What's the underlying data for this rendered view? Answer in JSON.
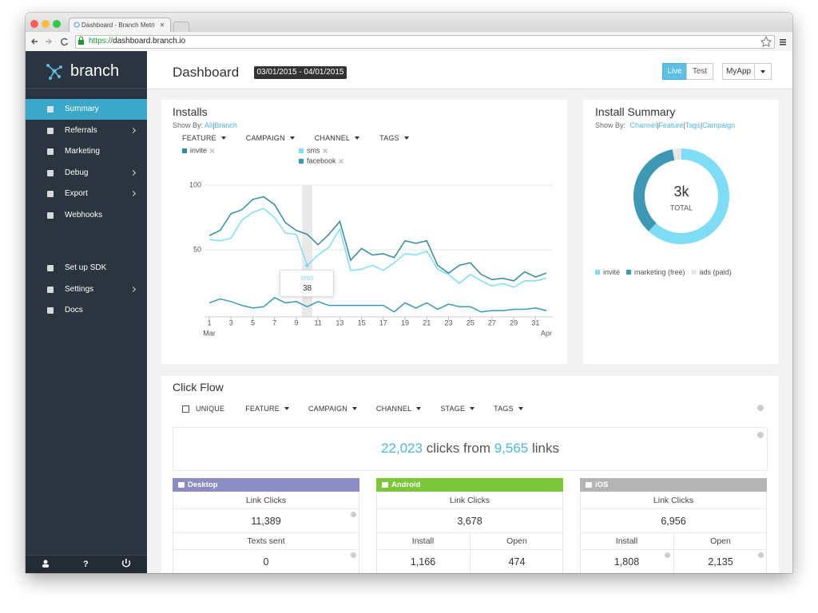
{
  "browser": {
    "tab_title": "Dashboard - Branch Metri",
    "url": {
      "scheme": "https://",
      "host": "dashboard.branch.io"
    }
  },
  "sidebar": {
    "logo": "branch",
    "menu": [
      [
        {
          "label": "Summary",
          "active": true
        },
        {
          "label": "Referrals",
          "submenu": true
        },
        {
          "label": "Marketing"
        },
        {
          "label": "Debug",
          "submenu": true
        },
        {
          "label": "Export",
          "submenu": true
        },
        {
          "label": "Webhooks"
        }
      ],
      [
        {
          "label": "Set up SDK"
        },
        {
          "label": "Settings",
          "submenu": true
        },
        {
          "label": "Docs"
        }
      ]
    ],
    "help": "?"
  },
  "header": {
    "title": "Dashboard",
    "date_range": "03/01/2015 - 04/01/2015",
    "env": [
      "Live",
      "Test"
    ],
    "app": "MyApp"
  },
  "installs": {
    "title": "Installs",
    "show_by_label": "Show By:",
    "show_by": [
      "All",
      "Branch"
    ],
    "separator": "|",
    "filters": [
      "FEATURE",
      "CAMPAIGN",
      "CHANNEL",
      "TAGS"
    ],
    "chart_data": {
      "type": "line",
      "x": [
        1,
        2,
        3,
        4,
        5,
        6,
        7,
        8,
        9,
        10,
        11,
        12,
        13,
        14,
        15,
        16,
        17,
        18,
        19,
        20,
        21,
        22,
        23,
        24,
        25,
        26,
        27,
        28,
        29,
        30,
        31,
        32
      ],
      "xlim": [
        1,
        32
      ],
      "xticks": [
        1,
        3,
        5,
        7,
        9,
        11,
        13,
        15,
        17,
        19,
        21,
        23,
        25,
        27,
        29,
        31
      ],
      "x_labels": [
        {
          "value": 1,
          "label": "Mar"
        },
        {
          "value": 32,
          "label": "Apr"
        }
      ],
      "ylim": [
        0,
        100
      ],
      "yticks": [
        50,
        100
      ],
      "grid": true,
      "highlight_x": 10,
      "tooltip": {
        "series": 1,
        "x": 10
      },
      "series": [
        {
          "name": "invite",
          "color": "#34899e",
          "values": [
            61,
            65,
            78,
            81,
            89,
            91,
            85,
            71,
            65,
            62,
            54,
            62,
            72,
            42,
            51,
            46,
            47,
            44,
            57,
            55,
            57,
            38,
            32,
            38,
            40,
            31,
            27,
            28,
            26,
            33,
            29,
            32
          ]
        },
        {
          "name": "sms",
          "color": "#7fdcf5",
          "values": [
            58,
            57,
            59,
            73,
            79,
            82,
            75,
            63,
            62,
            38,
            46,
            52,
            66,
            34,
            35,
            38,
            34,
            40,
            47,
            46,
            49,
            35,
            31,
            24,
            31,
            26,
            22,
            24,
            21,
            26,
            26,
            28
          ]
        },
        {
          "name": "facebook",
          "color": "#3c98b3",
          "values": [
            9,
            12,
            10,
            7,
            5,
            6,
            13,
            9,
            10,
            6,
            10,
            7,
            7,
            7,
            7,
            7,
            7,
            2,
            9,
            5,
            9,
            4,
            8,
            6,
            6,
            2,
            3,
            3,
            4,
            4,
            5,
            3
          ]
        }
      ]
    }
  },
  "install_summary": {
    "title": "Install Summary",
    "show_by_label": "Show By:",
    "show_by": [
      "Channel",
      "Feature",
      "Tags",
      "Campaign"
    ],
    "separator": "|",
    "chart_data": {
      "type": "donut",
      "center_value": "3k",
      "center_label": "TOTAL",
      "categories": [
        "invite",
        "marketing (free)",
        "ads (paid)"
      ],
      "values": [
        62,
        35,
        3
      ],
      "colors": [
        "#7fdcf5",
        "#3c98b3",
        "#e6e6e6"
      ]
    }
  },
  "click_flow": {
    "title": "Click Flow",
    "unique": "UNIQUE",
    "filters": [
      "FEATURE",
      "CAMPAIGN",
      "CHANNEL",
      "STAGE",
      "TAGS"
    ],
    "summary": {
      "clicks": "22,023",
      "clicks_text": "clicks from",
      "links": "9,565",
      "links_text": "links"
    },
    "platforms": [
      {
        "name": "Desktop",
        "color": "#8b8dc2",
        "rows": [
          [
            {
              "label": "Link Clicks",
              "value": "11,389"
            }
          ],
          [
            {
              "label": "Texts sent",
              "value": "0"
            }
          ]
        ]
      },
      {
        "name": "Android",
        "color": "#7cc63a",
        "rows": [
          [
            {
              "label": "Link Clicks",
              "value": "3,678"
            }
          ],
          [
            {
              "label": "Install",
              "value": "1,166"
            },
            {
              "label": "Open",
              "value": "474"
            }
          ]
        ]
      },
      {
        "name": "iOS",
        "color": "#b4b4b4",
        "rows": [
          [
            {
              "label": "Link Clicks",
              "value": "6,956"
            }
          ],
          [
            {
              "label": "Install",
              "value": "1,808"
            },
            {
              "label": "Open",
              "value": "2,135"
            }
          ]
        ]
      }
    ]
  }
}
